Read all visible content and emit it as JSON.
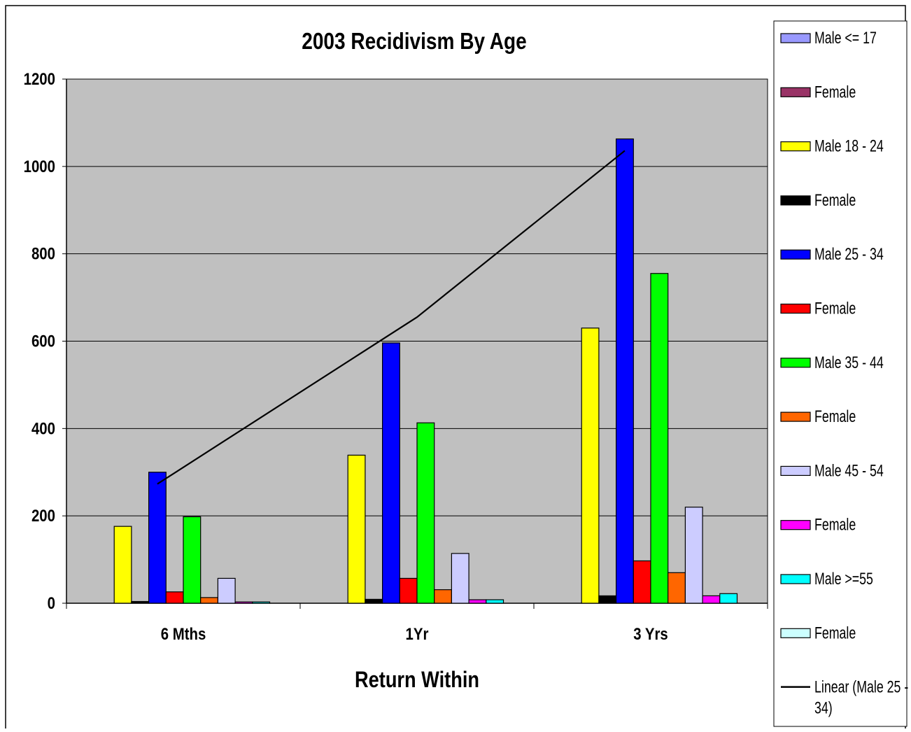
{
  "chart_data": {
    "type": "bar",
    "title": "2003 Recidivism By Age",
    "xlabel": "Return Within",
    "ylabel": "",
    "ylim": [
      0,
      1200
    ],
    "yticks": [
      0,
      200,
      400,
      600,
      800,
      1000,
      1200
    ],
    "grid": true,
    "legend_position": "right",
    "categories": [
      "6 Mths",
      "1Yr",
      "3 Yrs"
    ],
    "series": [
      {
        "name": "Male <= 17",
        "color": "#9999FF",
        "values": [
          0,
          0,
          0
        ]
      },
      {
        "name": "Female",
        "color": "#993366",
        "values": [
          0,
          0,
          0
        ]
      },
      {
        "name": "Male 18 - 24",
        "color": "#FFFF00",
        "values": [
          176,
          339,
          630
        ]
      },
      {
        "name": "Female",
        "color": "#000000",
        "values": [
          4,
          9,
          17
        ]
      },
      {
        "name": "Male 25 - 34",
        "color": "#0000FF",
        "values": [
          300,
          596,
          1063
        ]
      },
      {
        "name": "Female",
        "color": "#FF0000",
        "values": [
          26,
          57,
          97
        ]
      },
      {
        "name": "Male 35 - 44",
        "color": "#00FF00",
        "values": [
          198,
          413,
          755
        ]
      },
      {
        "name": "Female",
        "color": "#FF6600",
        "values": [
          13,
          31,
          70
        ]
      },
      {
        "name": "Male 45 - 54",
        "color": "#CCCCFF",
        "values": [
          57,
          114,
          220
        ]
      },
      {
        "name": "Female",
        "color": "#FF00FF",
        "values": [
          3,
          8,
          17
        ]
      },
      {
        "name": "Male >=55",
        "color": "#00FFFF",
        "values": [
          3,
          8,
          22
        ]
      },
      {
        "name": "Female",
        "color": "#CCFFFF",
        "values": [
          0,
          0,
          0
        ]
      }
    ],
    "trendline": {
      "name": "Linear (Male 25 - 34)",
      "type": "linear",
      "of_series": "Male 25 - 34",
      "color": "#000000",
      "y_values": [
        273,
        655,
        1036
      ]
    },
    "colors": {
      "plot_background": "#C0C0C0",
      "gridline": "#000000",
      "page_background": "#FFFFFF"
    }
  }
}
